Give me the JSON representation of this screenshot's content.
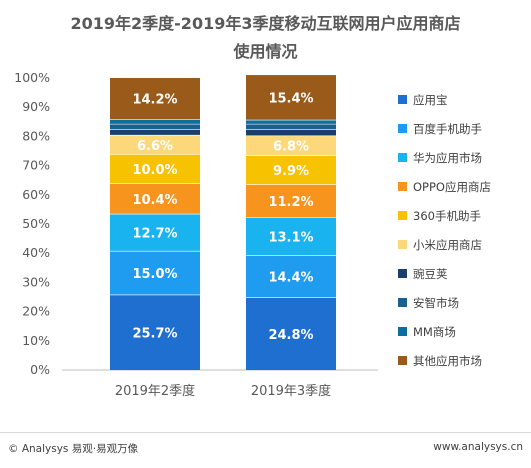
{
  "title_line1": "2019年2季度-2019年3季度移动互联网用户应用商店",
  "title_line2": "使用情况",
  "chart_data": {
    "type": "bar",
    "stacked": true,
    "percent": true,
    "categories": [
      "2019年2季度",
      "2019年3季度"
    ],
    "yticks": [
      "0%",
      "10%",
      "20%",
      "30%",
      "40%",
      "50%",
      "60%",
      "70%",
      "80%",
      "90%",
      "100%"
    ],
    "ylim": [
      0,
      100
    ],
    "grid": false,
    "legend_position": "right",
    "series": [
      {
        "name": "应用宝",
        "color": "#1f6fd0",
        "values": [
          25.7,
          24.8
        ],
        "labels": [
          "25.7%",
          "24.8%"
        ]
      },
      {
        "name": "百度手机助手",
        "color": "#1f9cf0",
        "values": [
          15.0,
          14.4
        ],
        "labels": [
          "15.0%",
          "14.4%"
        ]
      },
      {
        "name": "华为应用市场",
        "color": "#19b3f0",
        "values": [
          12.7,
          13.1
        ],
        "labels": [
          "12.7%",
          "13.1%"
        ]
      },
      {
        "name": "OPPO应用商店",
        "color": "#f7941d",
        "values": [
          10.4,
          11.2
        ],
        "labels": [
          "10.4%",
          "11.2%"
        ]
      },
      {
        "name": "360手机助手",
        "color": "#f7c200",
        "values": [
          10.0,
          9.9
        ],
        "labels": [
          "10.0%",
          "9.9%"
        ]
      },
      {
        "name": "小米应用商店",
        "color": "#fcd87a",
        "values": [
          6.6,
          6.8
        ],
        "labels": [
          "6.6%",
          "6.8%"
        ]
      },
      {
        "name": "豌豆荚",
        "color": "#1b3f6b",
        "values": [
          2.0,
          2.1
        ],
        "labels": [
          "",
          ""
        ]
      },
      {
        "name": "安智市场",
        "color": "#17608f",
        "values": [
          1.8,
          1.9
        ],
        "labels": [
          "",
          ""
        ]
      },
      {
        "name": "MM商场",
        "color": "#0f6ea0",
        "values": [
          1.6,
          1.4
        ],
        "labels": [
          "",
          ""
        ]
      },
      {
        "name": "其他应用市场",
        "color": "#9a5a1a",
        "values": [
          14.2,
          15.4
        ],
        "labels": [
          "14.2%",
          "15.4%"
        ]
      }
    ]
  },
  "footer": {
    "left": "© Analysys 易观·易观万像",
    "right": "www.analysys.cn"
  }
}
